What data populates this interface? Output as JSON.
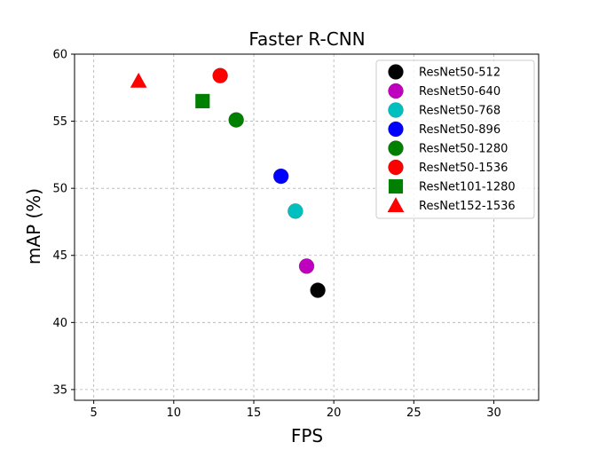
{
  "chart_data": {
    "type": "scatter",
    "title": "Faster R-CNN",
    "xlabel": "FPS",
    "ylabel": "mAP (%)",
    "xlim": [
      3.8,
      32.8
    ],
    "ylim": [
      34.2,
      60
    ],
    "xticks": [
      5,
      10,
      15,
      20,
      25,
      30
    ],
    "yticks": [
      35,
      40,
      45,
      50,
      55,
      60
    ],
    "grid": true,
    "legend_position": "upper-right",
    "series": [
      {
        "name": "ResNet50-512",
        "marker": "circle",
        "color": "#000000",
        "points": [
          [
            19.0,
            42.4
          ]
        ]
      },
      {
        "name": "ResNet50-640",
        "marker": "circle",
        "color": "#bf00bf",
        "points": [
          [
            18.3,
            44.2
          ]
        ]
      },
      {
        "name": "ResNet50-768",
        "marker": "circle",
        "color": "#00bfbf",
        "points": [
          [
            17.6,
            48.3
          ]
        ]
      },
      {
        "name": "ResNet50-896",
        "marker": "circle",
        "color": "#0000ff",
        "points": [
          [
            16.7,
            50.9
          ]
        ]
      },
      {
        "name": "ResNet50-1280",
        "marker": "circle",
        "color": "#008000",
        "points": [
          [
            13.9,
            55.1
          ]
        ]
      },
      {
        "name": "ResNet50-1536",
        "marker": "circle",
        "color": "#ff0000",
        "points": [
          [
            12.9,
            58.4
          ]
        ]
      },
      {
        "name": "ResNet101-1280",
        "marker": "square",
        "color": "#008000",
        "points": [
          [
            11.8,
            56.5
          ]
        ]
      },
      {
        "name": "ResNet152-1536",
        "marker": "triangle",
        "color": "#ff0000",
        "points": [
          [
            7.8,
            58.0
          ]
        ]
      }
    ]
  }
}
